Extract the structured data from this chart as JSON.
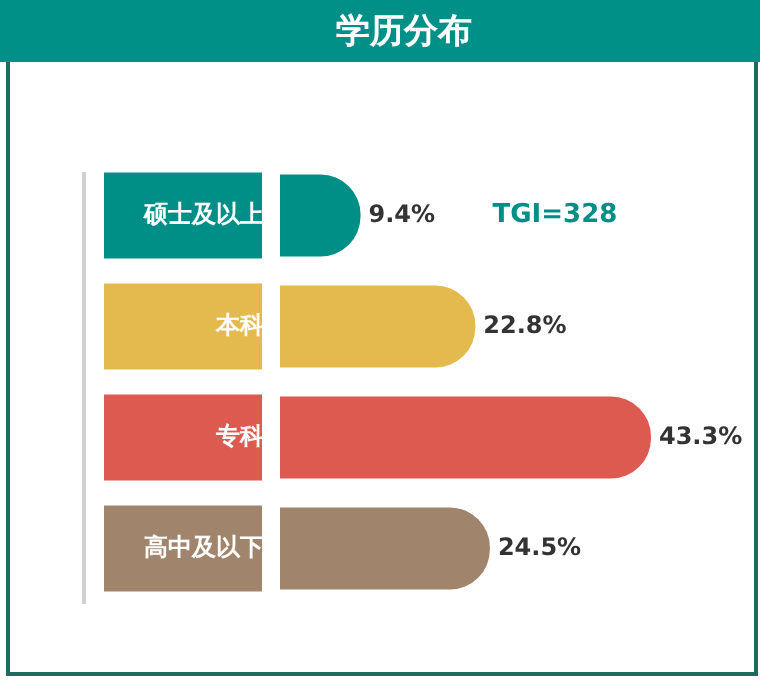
{
  "chart_data": {
    "type": "bar",
    "orientation": "horizontal",
    "title": "学历分布",
    "categories": [
      "硕士及以上",
      "本科",
      "专科",
      "高中及以下"
    ],
    "values": [
      9.4,
      22.8,
      43.3,
      24.5
    ],
    "colors": [
      "#008f87",
      "#e4b94e",
      "#dc5a50",
      "#a0846b"
    ],
    "value_labels": [
      "9.4%",
      "22.8%",
      "43.3%",
      "24.5%"
    ],
    "annotations": [
      "TGI=328"
    ],
    "tick_labels": "y"
  }
}
